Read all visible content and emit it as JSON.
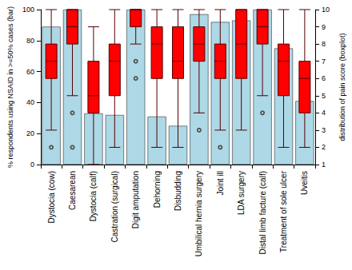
{
  "chart_data": {
    "type": "bar",
    "y_label": "% respondents using NSAID in >=50% cases (bar)",
    "y2_label": "distribution of pain score (boxplot)",
    "categories": [
      "Dystocia (cow)",
      "Caesarean",
      "Dystocia (calf)",
      "Castration (surgical)",
      "Digit amputation",
      "Dehorning",
      "Disbudding",
      "Umbilical hernia surgery",
      "Joint ill",
      "LDA surgery",
      "Distal limb facture (calf)",
      "Treatment of sole ulcer",
      "Uveitis"
    ],
    "values": [
      89,
      100,
      33,
      32,
      100,
      31,
      25,
      97,
      92,
      93,
      100,
      75,
      41
    ],
    "color": "#add8e6",
    "ylim": [
      0,
      100
    ],
    "yticks": [
      0,
      20,
      40,
      60,
      80,
      100
    ],
    "y2lim": [
      1,
      10
    ],
    "y2ticks": [
      1,
      2,
      3,
      4,
      5,
      6,
      7,
      8,
      9,
      10
    ],
    "boxplot": {
      "type": "boxplot",
      "axis": "y2",
      "color": "#ff0000",
      "boxes": [
        [
          3,
          6,
          7,
          8,
          10
        ],
        [
          5,
          8,
          9,
          10,
          10
        ],
        [
          1,
          4,
          5,
          7,
          9
        ],
        [
          2,
          5,
          7,
          8,
          10
        ],
        [
          8,
          9,
          10,
          10,
          10
        ],
        [
          2,
          6,
          8,
          9,
          10
        ],
        [
          2,
          6,
          7,
          9,
          10
        ],
        [
          4,
          7,
          8,
          9,
          10
        ],
        [
          3,
          6,
          7,
          8,
          10
        ],
        [
          3,
          6,
          8,
          10,
          10
        ],
        [
          5,
          8,
          9,
          10,
          10
        ],
        [
          2,
          5,
          7,
          8,
          10
        ],
        [
          2,
          4,
          6,
          7,
          10
        ]
      ],
      "outliers": [
        [
          2
        ],
        [
          4,
          2
        ],
        [],
        [],
        [
          7,
          6
        ],
        [],
        [],
        [
          3
        ],
        [
          2
        ],
        [],
        [
          4
        ],
        [],
        []
      ]
    },
    "grid": false
  }
}
